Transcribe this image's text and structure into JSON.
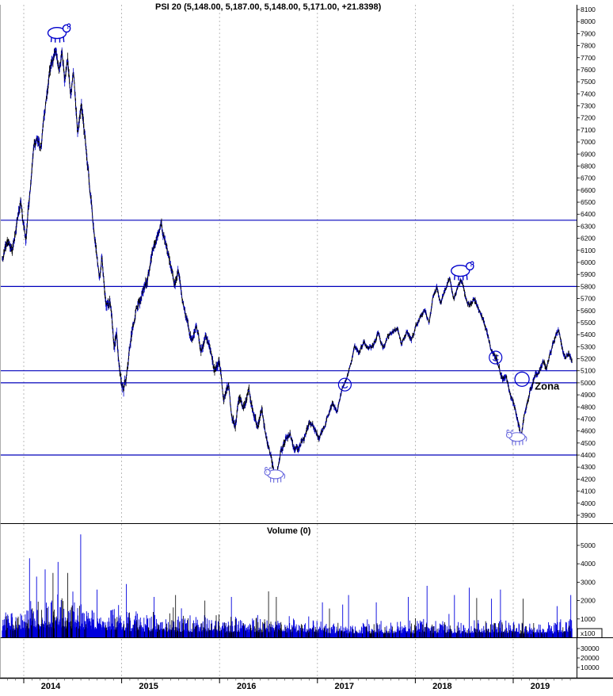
{
  "chart_data": {
    "type": "line",
    "title": "PSI 20 (5,148.00, 5,187.00, 5,148.00, 5,171.00, +21.8398)",
    "volume_title": "Volume (0)",
    "colors": {
      "accent": "#0000cc",
      "hline": "#0000bb",
      "grid": "#aaaaaa",
      "volume": "#0000dd",
      "bull": "#6666dd"
    },
    "price_axis": {
      "min": 3900,
      "max": 8100,
      "step": 100
    },
    "x_years": [
      2014,
      2015,
      2016,
      2017,
      2018,
      2019
    ],
    "t_start": 2013.78,
    "t_end": 2019.6,
    "horizontal_lines": [
      6350,
      5800,
      5100,
      5000,
      4400
    ],
    "volume_axis": {
      "ticks": [
        1000,
        2000,
        3000,
        4000,
        5000
      ],
      "scale_label": "x100",
      "sub_ticks": [
        30000,
        20000,
        10000
      ]
    },
    "price_keypoints": [
      [
        2013.78,
        6030
      ],
      [
        2013.83,
        6180
      ],
      [
        2013.88,
        6080
      ],
      [
        2013.93,
        6350
      ],
      [
        2013.97,
        6480
      ],
      [
        2014.02,
        6200
      ],
      [
        2014.06,
        6550
      ],
      [
        2014.1,
        6950
      ],
      [
        2014.14,
        7050
      ],
      [
        2014.17,
        6900
      ],
      [
        2014.22,
        7300
      ],
      [
        2014.26,
        7570
      ],
      [
        2014.3,
        7700
      ],
      [
        2014.33,
        7780
      ],
      [
        2014.36,
        7600
      ],
      [
        2014.39,
        7750
      ],
      [
        2014.42,
        7500
      ],
      [
        2014.45,
        7690
      ],
      [
        2014.48,
        7400
      ],
      [
        2014.51,
        7550
      ],
      [
        2014.55,
        7100
      ],
      [
        2014.59,
        7300
      ],
      [
        2014.63,
        7000
      ],
      [
        2014.67,
        6650
      ],
      [
        2014.71,
        6300
      ],
      [
        2014.74,
        6100
      ],
      [
        2014.77,
        5900
      ],
      [
        2014.8,
        6050
      ],
      [
        2014.84,
        5600
      ],
      [
        2014.88,
        5700
      ],
      [
        2014.92,
        5300
      ],
      [
        2014.95,
        5400
      ],
      [
        2014.99,
        5050
      ],
      [
        2015.02,
        4950
      ],
      [
        2015.06,
        5100
      ],
      [
        2015.1,
        5400
      ],
      [
        2015.15,
        5600
      ],
      [
        2015.2,
        5700
      ],
      [
        2015.26,
        5850
      ],
      [
        2015.31,
        6050
      ],
      [
        2015.36,
        6200
      ],
      [
        2015.4,
        6330
      ],
      [
        2015.44,
        6180
      ],
      [
        2015.49,
        6000
      ],
      [
        2015.54,
        5820
      ],
      [
        2015.58,
        5950
      ],
      [
        2015.63,
        5650
      ],
      [
        2015.68,
        5450
      ],
      [
        2015.72,
        5340
      ],
      [
        2015.76,
        5500
      ],
      [
        2015.81,
        5250
      ],
      [
        2015.86,
        5400
      ],
      [
        2015.9,
        5300
      ],
      [
        2015.95,
        5100
      ],
      [
        2016,
        5180
      ],
      [
        2016.04,
        4850
      ],
      [
        2016.09,
        4980
      ],
      [
        2016.13,
        4700
      ],
      [
        2016.16,
        4620
      ],
      [
        2016.2,
        4880
      ],
      [
        2016.25,
        4780
      ],
      [
        2016.3,
        4950
      ],
      [
        2016.35,
        4700
      ],
      [
        2016.39,
        4640
      ],
      [
        2016.43,
        4780
      ],
      [
        2016.48,
        4550
      ],
      [
        2016.52,
        4400
      ],
      [
        2016.55,
        4280
      ],
      [
        2016.58,
        4230
      ],
      [
        2016.62,
        4420
      ],
      [
        2016.67,
        4520
      ],
      [
        2016.72,
        4580
      ],
      [
        2016.77,
        4430
      ],
      [
        2016.82,
        4480
      ],
      [
        2016.87,
        4550
      ],
      [
        2016.92,
        4680
      ],
      [
        2016.97,
        4620
      ],
      [
        2017.02,
        4540
      ],
      [
        2017.06,
        4620
      ],
      [
        2017.1,
        4700
      ],
      [
        2017.15,
        4820
      ],
      [
        2017.2,
        4760
      ],
      [
        2017.25,
        4950
      ],
      [
        2017.3,
        5050
      ],
      [
        2017.34,
        5150
      ],
      [
        2017.38,
        5290
      ],
      [
        2017.43,
        5250
      ],
      [
        2017.47,
        5340
      ],
      [
        2017.52,
        5280
      ],
      [
        2017.57,
        5310
      ],
      [
        2017.62,
        5410
      ],
      [
        2017.67,
        5290
      ],
      [
        2017.72,
        5380
      ],
      [
        2017.77,
        5430
      ],
      [
        2017.82,
        5440
      ],
      [
        2017.86,
        5320
      ],
      [
        2017.91,
        5420
      ],
      [
        2017.96,
        5350
      ],
      [
        2018.01,
        5480
      ],
      [
        2018.06,
        5560
      ],
      [
        2018.1,
        5620
      ],
      [
        2018.14,
        5480
      ],
      [
        2018.18,
        5700
      ],
      [
        2018.22,
        5790
      ],
      [
        2018.26,
        5680
      ],
      [
        2018.31,
        5780
      ],
      [
        2018.35,
        5860
      ],
      [
        2018.39,
        5700
      ],
      [
        2018.43,
        5800
      ],
      [
        2018.47,
        5840
      ],
      [
        2018.51,
        5720
      ],
      [
        2018.55,
        5640
      ],
      [
        2018.6,
        5700
      ],
      [
        2018.64,
        5620
      ],
      [
        2018.68,
        5560
      ],
      [
        2018.72,
        5440
      ],
      [
        2018.77,
        5300
      ],
      [
        2018.81,
        5220
      ],
      [
        2018.85,
        5150
      ],
      [
        2018.89,
        5020
      ],
      [
        2018.93,
        5080
      ],
      [
        2018.97,
        4900
      ],
      [
        2019,
        4850
      ],
      [
        2019.04,
        4700
      ],
      [
        2019.08,
        4560
      ],
      [
        2019.11,
        4700
      ],
      [
        2019.15,
        4850
      ],
      [
        2019.19,
        4980
      ],
      [
        2019.23,
        5060
      ],
      [
        2019.27,
        5100
      ],
      [
        2019.31,
        5180
      ],
      [
        2019.34,
        5120
      ],
      [
        2019.38,
        5250
      ],
      [
        2019.42,
        5350
      ],
      [
        2019.46,
        5430
      ],
      [
        2019.5,
        5290
      ],
      [
        2019.53,
        5200
      ],
      [
        2019.57,
        5260
      ],
      [
        2019.6,
        5171
      ]
    ],
    "volatility_keypoints": [
      [
        2013.78,
        42
      ],
      [
        2014.35,
        48
      ],
      [
        2014.9,
        50
      ],
      [
        2015.5,
        40
      ],
      [
        2016.3,
        38
      ],
      [
        2016.8,
        30
      ],
      [
        2017.3,
        22
      ],
      [
        2018.0,
        22
      ],
      [
        2018.6,
        26
      ],
      [
        2019.0,
        30
      ],
      [
        2019.6,
        24
      ]
    ],
    "volume_envelope": [
      [
        2013.78,
        1050
      ],
      [
        2014.05,
        1400
      ],
      [
        2014.35,
        1600
      ],
      [
        2014.6,
        1400
      ],
      [
        2014.9,
        1200
      ],
      [
        2015.3,
        1000
      ],
      [
        2015.8,
        900
      ],
      [
        2016.2,
        850
      ],
      [
        2016.6,
        900
      ],
      [
        2017.0,
        700
      ],
      [
        2017.5,
        650
      ],
      [
        2018.0,
        700
      ],
      [
        2018.5,
        650
      ],
      [
        2018.85,
        800
      ],
      [
        2019.2,
        550
      ],
      [
        2019.55,
        700
      ],
      [
        2019.6,
        1100
      ]
    ],
    "volume_spikes": [
      [
        2014.06,
        4300
      ],
      [
        2014.13,
        3300
      ],
      [
        2014.22,
        3700
      ],
      [
        2014.3,
        3500
      ],
      [
        2014.35,
        4100
      ],
      [
        2014.45,
        3500
      ],
      [
        2014.58,
        5600
      ],
      [
        2014.75,
        2600
      ],
      [
        2015.05,
        2900
      ],
      [
        2015.33,
        2200
      ],
      [
        2015.55,
        2300
      ],
      [
        2015.85,
        2000
      ],
      [
        2016.12,
        2200
      ],
      [
        2016.5,
        2500
      ],
      [
        2016.58,
        2200
      ],
      [
        2017.05,
        1900
      ],
      [
        2017.32,
        2300
      ],
      [
        2017.6,
        1900
      ],
      [
        2017.93,
        2200
      ],
      [
        2018.12,
        2800
      ],
      [
        2018.4,
        2300
      ],
      [
        2018.55,
        2700
      ],
      [
        2018.78,
        2100
      ],
      [
        2018.87,
        2600
      ],
      [
        2019.1,
        2100
      ],
      [
        2019.45,
        1700
      ],
      [
        2019.59,
        2300
      ]
    ],
    "annotations": {
      "bear_top_2014": {
        "t": 2014.34,
        "v": 7905
      },
      "bear_top_2018": {
        "t": 2018.46,
        "v": 5930
      },
      "bull_bottom_2016": {
        "t": 2016.57,
        "v": 4240
      },
      "bull_bottom_2018": {
        "t": 2019.04,
        "v": 4550
      },
      "smiley_2017": {
        "t": 2017.28,
        "v": 4985
      },
      "smiley_2018": {
        "t": 2018.82,
        "v": 5210
      },
      "circle_2019": {
        "t": 2019.09,
        "v": 5030
      },
      "zona_label": {
        "t": 2019.22,
        "v": 4945,
        "text": "Zona",
        "font_size": 13
      }
    }
  }
}
